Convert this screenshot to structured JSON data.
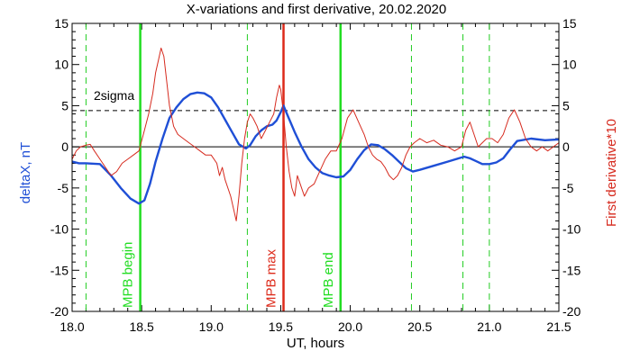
{
  "chart_data": {
    "type": "line",
    "title": "X-variations and first derivative, 20.02.2020",
    "xlabel": "UT, hours",
    "ylabel_left": "deltaX, nT",
    "ylabel_right": "First derivative*10",
    "xlim": [
      18.0,
      21.5
    ],
    "ylim": [
      -20,
      15
    ],
    "x_ticks": [
      "18.0",
      "18.5",
      "19.0",
      "19.5",
      "20.0",
      "20.5",
      "21.0",
      "21.5"
    ],
    "y_ticks": [
      "15",
      "10",
      "5",
      "0",
      "-5",
      "-10",
      "-15",
      "-20"
    ],
    "grid": false,
    "colors": {
      "deltaX": "#1f4fd6",
      "derivative": "#d62a1e",
      "mpb_solid": "#22dd22",
      "mpb_dashed": "#22cc22",
      "mpb_max": "#dd2a1a",
      "axis_left_label": "#1f4fd6",
      "axis_right_label": "#d62a1e"
    },
    "threshold": {
      "label": "2sigma",
      "value": 4.4
    },
    "zero_line": 0,
    "vlines": [
      {
        "x": 18.49,
        "style": "solid",
        "label": "MPB begin",
        "color": "#22dd22"
      },
      {
        "x": 19.52,
        "style": "solid",
        "label": "MPB max",
        "color": "#dd2a1a"
      },
      {
        "x": 19.93,
        "style": "solid",
        "label": "MPB end",
        "color": "#22dd22"
      },
      {
        "x": 18.1,
        "style": "dashed"
      },
      {
        "x": 19.26,
        "style": "dashed"
      },
      {
        "x": 20.44,
        "style": "dashed"
      },
      {
        "x": 20.81,
        "style": "dashed"
      },
      {
        "x": 21.0,
        "style": "dashed"
      }
    ],
    "series": [
      {
        "key": "deltaX",
        "x": [
          18.0,
          18.05,
          18.1,
          18.2,
          18.28,
          18.35,
          18.42,
          18.48,
          18.52,
          18.56,
          18.6,
          18.65,
          18.7,
          18.75,
          18.8,
          18.85,
          18.9,
          18.95,
          19.0,
          19.05,
          19.1,
          19.15,
          19.2,
          19.25,
          19.28,
          19.32,
          19.36,
          19.4,
          19.44,
          19.47,
          19.5,
          19.52,
          19.55,
          19.6,
          19.65,
          19.7,
          19.75,
          19.8,
          19.85,
          19.9,
          19.95,
          20.0,
          20.05,
          20.1,
          20.15,
          20.2,
          20.25,
          20.3,
          20.35,
          20.4,
          20.45,
          20.5,
          20.6,
          20.7,
          20.78,
          20.82,
          20.86,
          20.9,
          20.95,
          21.0,
          21.05,
          21.1,
          21.15,
          21.2,
          21.3,
          21.4,
          21.5
        ],
        "y": [
          -1.8,
          -2.0,
          -2.0,
          -2.1,
          -3.5,
          -5.0,
          -6.3,
          -6.9,
          -6.5,
          -4.5,
          -1.8,
          1.0,
          3.5,
          4.8,
          5.8,
          6.4,
          6.6,
          6.5,
          6.0,
          4.8,
          3.3,
          1.8,
          0.3,
          -0.2,
          0.2,
          1.3,
          2.0,
          2.5,
          2.7,
          3.2,
          4.2,
          5.0,
          3.8,
          1.8,
          0.0,
          -1.5,
          -2.5,
          -3.2,
          -3.5,
          -3.7,
          -3.6,
          -2.8,
          -1.5,
          -0.4,
          0.3,
          0.2,
          -0.3,
          -1.0,
          -1.8,
          -2.6,
          -3.0,
          -2.8,
          -2.3,
          -1.8,
          -1.4,
          -1.2,
          -1.4,
          -1.7,
          -2.1,
          -2.1,
          -1.9,
          -1.4,
          -0.3,
          0.7,
          1.0,
          0.8,
          0.9
        ]
      },
      {
        "key": "derivative",
        "x": [
          18.0,
          18.03,
          18.06,
          18.1,
          18.13,
          18.16,
          18.2,
          18.24,
          18.28,
          18.32,
          18.36,
          18.4,
          18.44,
          18.48,
          18.52,
          18.55,
          18.58,
          18.6,
          18.62,
          18.64,
          18.66,
          18.68,
          18.7,
          18.73,
          18.76,
          18.8,
          18.84,
          18.88,
          18.92,
          18.96,
          19.0,
          19.04,
          19.06,
          19.08,
          19.1,
          19.12,
          19.14,
          19.16,
          19.18,
          19.2,
          19.22,
          19.24,
          19.26,
          19.28,
          19.3,
          19.33,
          19.36,
          19.39,
          19.42,
          19.45,
          19.47,
          19.49,
          19.5,
          19.52,
          19.54,
          19.56,
          19.58,
          19.6,
          19.62,
          19.64,
          19.67,
          19.7,
          19.74,
          19.78,
          19.82,
          19.86,
          19.9,
          19.94,
          19.98,
          20.02,
          20.06,
          20.1,
          20.13,
          20.16,
          20.19,
          20.22,
          20.25,
          20.28,
          20.31,
          20.34,
          20.37,
          20.4,
          20.43,
          20.46,
          20.5,
          20.55,
          20.6,
          20.65,
          20.7,
          20.75,
          20.8,
          20.83,
          20.86,
          20.89,
          20.92,
          20.95,
          20.98,
          21.02,
          21.06,
          21.1,
          21.14,
          21.18,
          21.22,
          21.26,
          21.3,
          21.34,
          21.38,
          21.42,
          21.46,
          21.5
        ],
        "y": [
          -1.5,
          -0.5,
          0.0,
          0.2,
          0.3,
          -0.5,
          -1.5,
          -2.5,
          -3.5,
          -3.0,
          -2.0,
          -1.5,
          -1.0,
          -0.5,
          2.0,
          4.0,
          6.5,
          9.0,
          10.5,
          12.0,
          11.0,
          8.0,
          5.0,
          2.5,
          1.5,
          1.0,
          0.5,
          0.0,
          -0.5,
          -1.0,
          -1.0,
          -2.0,
          -3.5,
          -2.5,
          -4.0,
          -5.0,
          -6.0,
          -7.5,
          -9.0,
          -6.0,
          -2.0,
          1.0,
          3.0,
          4.0,
          3.5,
          2.5,
          1.0,
          2.0,
          3.0,
          4.0,
          6.0,
          7.5,
          7.0,
          4.0,
          0.0,
          -3.0,
          -5.0,
          -6.0,
          -3.5,
          -4.5,
          -6.0,
          -5.0,
          -4.5,
          -3.0,
          -1.5,
          -0.5,
          -0.5,
          1.0,
          3.5,
          4.5,
          3.0,
          1.5,
          0.0,
          -1.0,
          -1.5,
          -1.8,
          -2.5,
          -3.5,
          -4.0,
          -3.5,
          -2.5,
          -1.0,
          0.0,
          0.5,
          1.0,
          0.5,
          0.8,
          0.2,
          0.0,
          -0.5,
          0.0,
          2.0,
          3.0,
          1.5,
          0.0,
          0.5,
          1.0,
          1.0,
          0.5,
          1.5,
          3.5,
          4.5,
          3.0,
          1.0,
          0.0,
          -0.5,
          0.0,
          -0.5,
          0.0,
          0.5
        ]
      }
    ]
  }
}
